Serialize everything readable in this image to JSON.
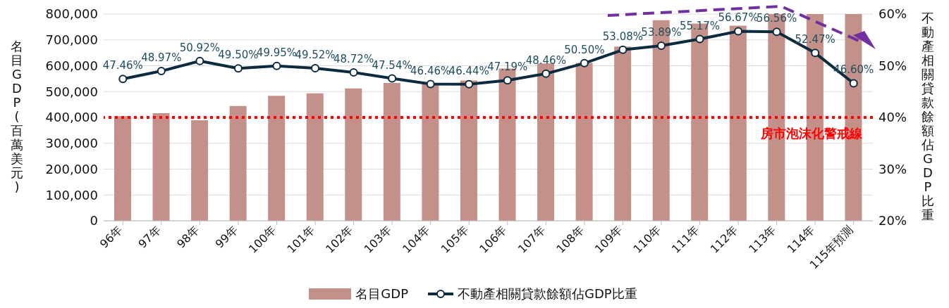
{
  "chart_data": {
    "type": "bar",
    "xlabel": null,
    "ylabel": "名目GDP(百萬美元)",
    "y2label": "不動產相關貸款餘額佔GDP比重",
    "categories": [
      "96年",
      "97年",
      "98年",
      "99年",
      "100年",
      "101年",
      "102年",
      "103年",
      "104年",
      "105年",
      "106年",
      "107年",
      "108年",
      "109年",
      "110年",
      "111年",
      "112年",
      "113年",
      "114年",
      "115年預測"
    ],
    "series": [
      {
        "name": "名目GDP",
        "color": "#c4908a",
        "values": [
          405000,
          416000,
          389000,
          444000,
          484000,
          493000,
          512000,
          533000,
          528000,
          543000,
          589000,
          609000,
          611000,
          674000,
          776000,
          763000,
          755000,
          800000,
          800000,
          800000
        ]
      },
      {
        "name": "不動產相關貸款餘額佔GDP比重",
        "type": "line",
        "axis": "y2",
        "color": "#0d2b3e",
        "marker": "circle",
        "values": [
          47.46,
          48.97,
          50.92,
          49.5,
          49.95,
          49.52,
          48.72,
          47.54,
          46.46,
          46.44,
          47.19,
          48.46,
          50.5,
          53.08,
          53.89,
          55.17,
          56.67,
          56.56,
          52.47,
          46.6
        ],
        "value_labels": [
          "47.46%",
          "48.97%",
          "50.92%",
          "49.50%",
          "49.95%",
          "49.52%",
          "48.72%",
          "47.54%",
          "46.46%",
          "46.44%",
          "47.19%",
          "48.46%",
          "50.50%",
          "53.08%",
          "53.89%",
          "55.17%",
          "56.67%",
          "56.56%",
          "52.47%",
          "46.60%"
        ]
      }
    ],
    "ylim": [
      0,
      800000
    ],
    "yticks": [
      {
        "value": 0,
        "label": "0"
      },
      {
        "value": 100000,
        "label": "100,000"
      },
      {
        "value": 200000,
        "label": "200,000"
      },
      {
        "value": 300000,
        "label": "300,000"
      },
      {
        "value": 400000,
        "label": "400,000"
      },
      {
        "value": 500000,
        "label": "500,000"
      },
      {
        "value": 600000,
        "label": "600,000"
      },
      {
        "value": 700000,
        "label": "700,000"
      },
      {
        "value": 800000,
        "label": "800,000"
      }
    ],
    "y2lim": [
      20,
      60
    ],
    "y2ticks": [
      {
        "value": 20,
        "label": "20%"
      },
      {
        "value": 30,
        "label": "30%"
      },
      {
        "value": 40,
        "label": "40%"
      },
      {
        "value": 50,
        "label": "50%"
      },
      {
        "value": 60,
        "label": "60%"
      }
    ],
    "ref_lines": [
      {
        "axis": "y2",
        "value": 40,
        "label": "房市泡沫化警戒線",
        "color": "#ff0000",
        "line_style": "dotted"
      }
    ],
    "grid": "y",
    "legend": "bottom"
  }
}
